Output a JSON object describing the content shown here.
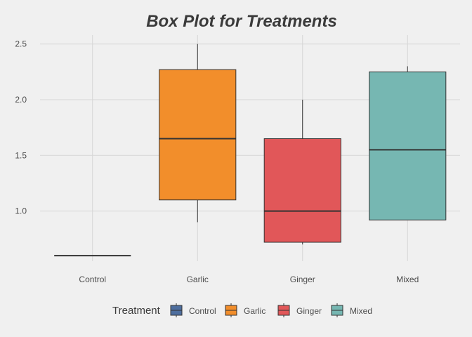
{
  "chart_data": {
    "type": "boxplot",
    "title": "Box Plot for Treatments",
    "xlabel": "",
    "ylabel": "",
    "categories": [
      "Control",
      "Garlic",
      "Ginger",
      "Mixed"
    ],
    "ylim": [
      0.55,
      2.58
    ],
    "yticks": [
      "1.0",
      "1.5",
      "2.0",
      "2.5"
    ],
    "grid": true,
    "legend": {
      "title": "Treatment",
      "placement": "bottom",
      "entries": [
        "Control",
        "Garlic",
        "Ginger",
        "Mixed"
      ]
    },
    "boxes": [
      {
        "category": "Control",
        "min": 0.6,
        "q1": 0.6,
        "median": 0.6,
        "q3": 0.6,
        "max": 0.6,
        "color": "#4e6e9e"
      },
      {
        "category": "Garlic",
        "min": 0.9,
        "q1": 1.1,
        "median": 1.65,
        "q3": 2.27,
        "max": 2.5,
        "color": "#f28e2b"
      },
      {
        "category": "Ginger",
        "min": 0.7,
        "q1": 0.72,
        "median": 1.0,
        "q3": 1.65,
        "max": 2.0,
        "color": "#e15759"
      },
      {
        "category": "Mixed",
        "min": 0.92,
        "q1": 0.92,
        "median": 1.55,
        "q3": 2.25,
        "max": 2.3,
        "color": "#76b7b2"
      }
    ]
  }
}
